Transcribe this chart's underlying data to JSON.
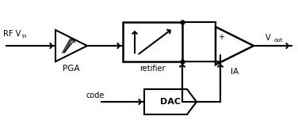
{
  "bg_color": "#ffffff",
  "line_color": "#000000",
  "line_width": 1.5,
  "figsize": [
    3.76,
    1.66
  ],
  "dpi": 100,
  "labels": {
    "RF_Vin": "RF V",
    "RF_Vin_sub": "in",
    "PGA": "PGA",
    "retifier": "retifier",
    "IA": "IA",
    "Vout": "V",
    "Vout_sub": "out",
    "code": "code",
    "DAC": "DAC"
  }
}
